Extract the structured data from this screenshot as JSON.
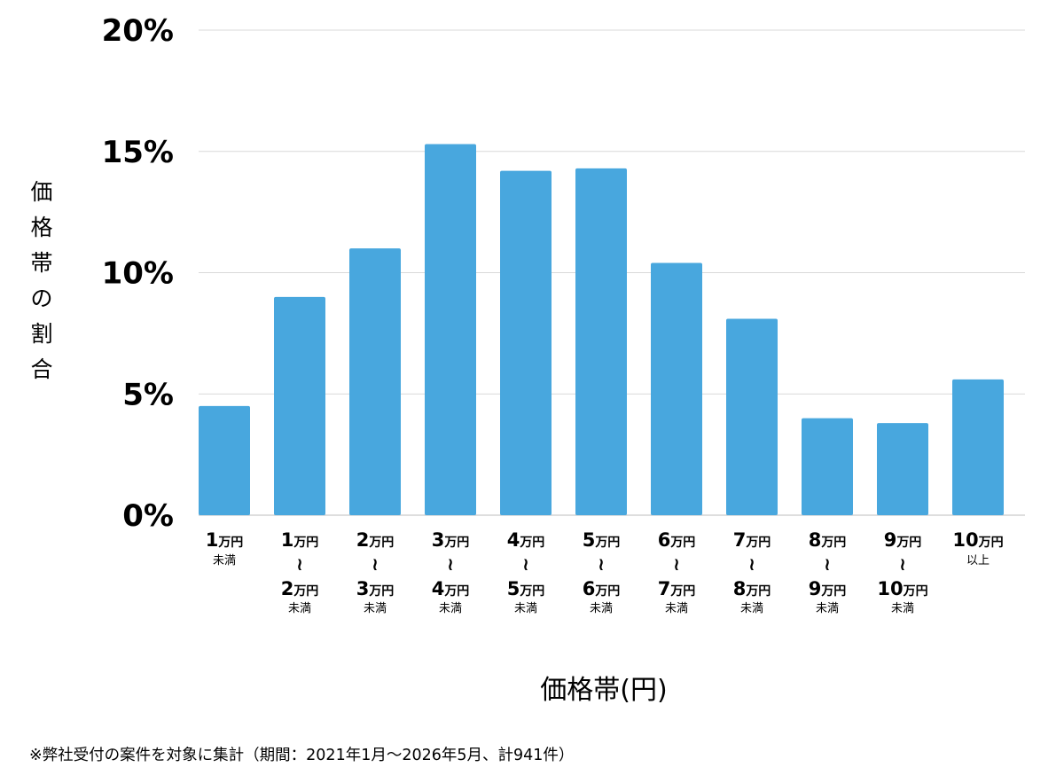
{
  "chart_data": {
    "type": "bar",
    "ylabel": "価格帯の割合",
    "xlabel": "価格帯(円)",
    "ylim": [
      0,
      20
    ],
    "yticks": [
      "0%",
      "5%",
      "10%",
      "15%",
      "20%"
    ],
    "grid": true,
    "bar_color": "#48a7de",
    "categories": [
      {
        "from_num": "1",
        "from_unit": "万円",
        "to_num": "",
        "to_unit": "",
        "sub": "未満",
        "tilde": ""
      },
      {
        "from_num": "1",
        "from_unit": "万円",
        "to_num": "2",
        "to_unit": "万円",
        "sub": "未満",
        "tilde": "≀"
      },
      {
        "from_num": "2",
        "from_unit": "万円",
        "to_num": "3",
        "to_unit": "万円",
        "sub": "未満",
        "tilde": "≀"
      },
      {
        "from_num": "3",
        "from_unit": "万円",
        "to_num": "4",
        "to_unit": "万円",
        "sub": "未満",
        "tilde": "≀"
      },
      {
        "from_num": "4",
        "from_unit": "万円",
        "to_num": "5",
        "to_unit": "万円",
        "sub": "未満",
        "tilde": "≀"
      },
      {
        "from_num": "5",
        "from_unit": "万円",
        "to_num": "6",
        "to_unit": "万円",
        "sub": "未満",
        "tilde": "≀"
      },
      {
        "from_num": "6",
        "from_unit": "万円",
        "to_num": "7",
        "to_unit": "万円",
        "sub": "未満",
        "tilde": "≀"
      },
      {
        "from_num": "7",
        "from_unit": "万円",
        "to_num": "8",
        "to_unit": "万円",
        "sub": "未満",
        "tilde": "≀"
      },
      {
        "from_num": "8",
        "from_unit": "万円",
        "to_num": "9",
        "to_unit": "万円",
        "sub": "未満",
        "tilde": "≀"
      },
      {
        "from_num": "9",
        "from_unit": "万円",
        "to_num": "10",
        "to_unit": "万円",
        "sub": "未満",
        "tilde": "≀"
      },
      {
        "from_num": "10",
        "from_unit": "万円",
        "to_num": "",
        "to_unit": "",
        "sub": "以上",
        "tilde": ""
      }
    ],
    "values": [
      4.5,
      9.0,
      11.0,
      15.3,
      14.2,
      14.3,
      10.4,
      8.1,
      4.0,
      3.8,
      5.6
    ]
  },
  "footnote": "※弊社受付の案件を対象に集計（期間：2021年1月〜2026年5月、計941件）"
}
